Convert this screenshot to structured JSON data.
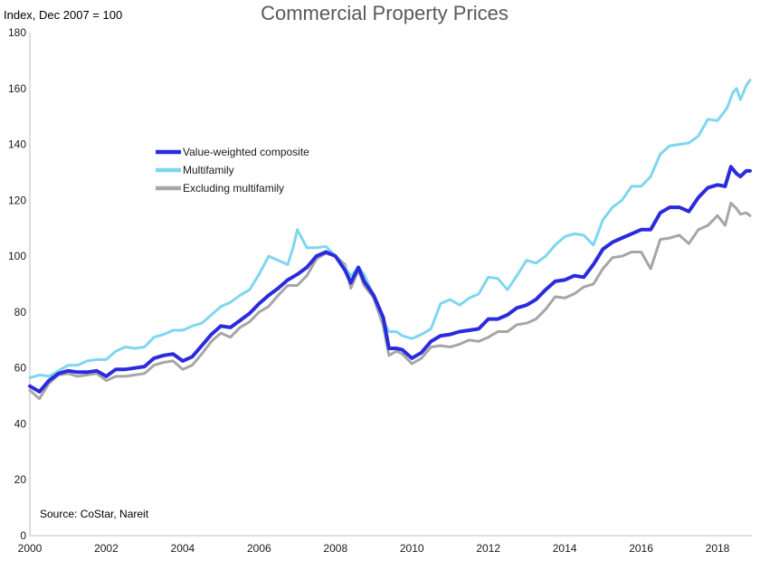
{
  "chart_data": {
    "type": "line",
    "title": "Commercial Property Prices",
    "unit_label": "Index, Dec 2007 = 100",
    "source": "Source: CoStar, Nareit",
    "xlim": [
      2000,
      2018.9
    ],
    "ylim": [
      0,
      180
    ],
    "yticks": [
      "0",
      "20",
      "40",
      "60",
      "80",
      "100",
      "120",
      "140",
      "160",
      "180"
    ],
    "xticks": [
      "2000",
      "2002",
      "2004",
      "2006",
      "2008",
      "2010",
      "2012",
      "2014",
      "2016",
      "2018"
    ],
    "legend_position": "upper-left",
    "series": [
      {
        "name": "Value-weighted composite",
        "color": "#2b2bdd",
        "points": [
          [
            2000.0,
            53.5
          ],
          [
            2000.25,
            51.5
          ],
          [
            2000.5,
            55.5
          ],
          [
            2000.75,
            58.0
          ],
          [
            2001.0,
            59.0
          ],
          [
            2001.25,
            58.5
          ],
          [
            2001.5,
            58.5
          ],
          [
            2001.75,
            59.0
          ],
          [
            2002.0,
            57.0
          ],
          [
            2002.25,
            59.5
          ],
          [
            2002.5,
            59.5
          ],
          [
            2002.75,
            60.0
          ],
          [
            2003.0,
            60.5
          ],
          [
            2003.25,
            63.5
          ],
          [
            2003.5,
            64.5
          ],
          [
            2003.75,
            65.0
          ],
          [
            2004.0,
            62.5
          ],
          [
            2004.25,
            64.0
          ],
          [
            2004.5,
            68.0
          ],
          [
            2004.75,
            72.0
          ],
          [
            2005.0,
            75.0
          ],
          [
            2005.25,
            74.5
          ],
          [
            2005.5,
            77.0
          ],
          [
            2005.75,
            79.5
          ],
          [
            2006.0,
            83.0
          ],
          [
            2006.25,
            86.0
          ],
          [
            2006.5,
            88.5
          ],
          [
            2006.75,
            91.5
          ],
          [
            2007.0,
            93.5
          ],
          [
            2007.25,
            96.0
          ],
          [
            2007.5,
            100.0
          ],
          [
            2007.75,
            101.5
          ],
          [
            2008.0,
            100.0
          ],
          [
            2008.25,
            95.0
          ],
          [
            2008.4,
            90.5
          ],
          [
            2008.6,
            96.0
          ],
          [
            2008.75,
            91.0
          ],
          [
            2009.0,
            86.0
          ],
          [
            2009.25,
            78.0
          ],
          [
            2009.4,
            67.0
          ],
          [
            2009.6,
            67.0
          ],
          [
            2009.75,
            66.5
          ],
          [
            2010.0,
            63.5
          ],
          [
            2010.25,
            65.5
          ],
          [
            2010.5,
            69.5
          ],
          [
            2010.75,
            71.5
          ],
          [
            2011.0,
            72.0
          ],
          [
            2011.25,
            73.0
          ],
          [
            2011.5,
            73.5
          ],
          [
            2011.75,
            74.0
          ],
          [
            2012.0,
            77.5
          ],
          [
            2012.25,
            77.5
          ],
          [
            2012.5,
            79.0
          ],
          [
            2012.75,
            81.5
          ],
          [
            2013.0,
            82.5
          ],
          [
            2013.25,
            84.5
          ],
          [
            2013.5,
            88.0
          ],
          [
            2013.75,
            91.0
          ],
          [
            2014.0,
            91.5
          ],
          [
            2014.25,
            93.0
          ],
          [
            2014.5,
            92.5
          ],
          [
            2014.75,
            97.0
          ],
          [
            2015.0,
            102.5
          ],
          [
            2015.25,
            105.0
          ],
          [
            2015.5,
            106.5
          ],
          [
            2015.75,
            108.0
          ],
          [
            2016.0,
            109.5
          ],
          [
            2016.25,
            109.5
          ],
          [
            2016.5,
            115.5
          ],
          [
            2016.75,
            117.5
          ],
          [
            2017.0,
            117.5
          ],
          [
            2017.25,
            116.0
          ],
          [
            2017.5,
            121.0
          ],
          [
            2017.75,
            124.5
          ],
          [
            2018.0,
            125.5
          ],
          [
            2018.2,
            125.0
          ],
          [
            2018.35,
            132.0
          ],
          [
            2018.5,
            129.5
          ],
          [
            2018.6,
            128.5
          ],
          [
            2018.75,
            130.5
          ],
          [
            2018.85,
            130.5
          ]
        ]
      },
      {
        "name": "Multifamily",
        "color": "#7fd6f0",
        "points": [
          [
            2000.0,
            56.5
          ],
          [
            2000.25,
            57.5
          ],
          [
            2000.5,
            57.0
          ],
          [
            2000.75,
            59.0
          ],
          [
            2001.0,
            61.0
          ],
          [
            2001.25,
            61.0
          ],
          [
            2001.5,
            62.5
          ],
          [
            2001.75,
            63.0
          ],
          [
            2002.0,
            63.0
          ],
          [
            2002.25,
            66.0
          ],
          [
            2002.5,
            67.5
          ],
          [
            2002.75,
            67.0
          ],
          [
            2003.0,
            67.5
          ],
          [
            2003.25,
            71.0
          ],
          [
            2003.5,
            72.0
          ],
          [
            2003.75,
            73.5
          ],
          [
            2004.0,
            73.5
          ],
          [
            2004.25,
            75.0
          ],
          [
            2004.5,
            76.0
          ],
          [
            2004.75,
            79.0
          ],
          [
            2005.0,
            82.0
          ],
          [
            2005.25,
            83.5
          ],
          [
            2005.5,
            86.0
          ],
          [
            2005.75,
            88.0
          ],
          [
            2006.0,
            93.5
          ],
          [
            2006.25,
            100.0
          ],
          [
            2006.5,
            98.5
          ],
          [
            2006.75,
            97.0
          ],
          [
            2006.9,
            103.5
          ],
          [
            2007.0,
            109.5
          ],
          [
            2007.25,
            103.0
          ],
          [
            2007.5,
            103.0
          ],
          [
            2007.75,
            103.5
          ],
          [
            2008.0,
            100.0
          ],
          [
            2008.25,
            96.0
          ],
          [
            2008.4,
            93.0
          ],
          [
            2008.6,
            96.0
          ],
          [
            2008.75,
            93.5
          ],
          [
            2009.0,
            86.0
          ],
          [
            2009.25,
            77.0
          ],
          [
            2009.4,
            73.0
          ],
          [
            2009.6,
            73.0
          ],
          [
            2009.75,
            71.5
          ],
          [
            2010.0,
            70.5
          ],
          [
            2010.25,
            72.0
          ],
          [
            2010.5,
            74.0
          ],
          [
            2010.75,
            83.0
          ],
          [
            2011.0,
            84.5
          ],
          [
            2011.25,
            82.5
          ],
          [
            2011.5,
            85.0
          ],
          [
            2011.75,
            86.5
          ],
          [
            2012.0,
            92.5
          ],
          [
            2012.25,
            92.0
          ],
          [
            2012.5,
            88.0
          ],
          [
            2012.75,
            93.0
          ],
          [
            2013.0,
            98.5
          ],
          [
            2013.25,
            97.5
          ],
          [
            2013.5,
            100.0
          ],
          [
            2013.75,
            104.0
          ],
          [
            2014.0,
            107.0
          ],
          [
            2014.25,
            108.0
          ],
          [
            2014.5,
            107.5
          ],
          [
            2014.75,
            104.0
          ],
          [
            2015.0,
            113.0
          ],
          [
            2015.25,
            117.5
          ],
          [
            2015.5,
            120.0
          ],
          [
            2015.75,
            125.0
          ],
          [
            2016.0,
            125.0
          ],
          [
            2016.25,
            128.5
          ],
          [
            2016.5,
            136.5
          ],
          [
            2016.75,
            139.5
          ],
          [
            2017.0,
            140.0
          ],
          [
            2017.25,
            140.5
          ],
          [
            2017.5,
            143.0
          ],
          [
            2017.75,
            149.0
          ],
          [
            2018.0,
            148.5
          ],
          [
            2018.25,
            153.0
          ],
          [
            2018.4,
            158.5
          ],
          [
            2018.5,
            160.0
          ],
          [
            2018.6,
            156.0
          ],
          [
            2018.75,
            161.0
          ],
          [
            2018.85,
            163.0
          ]
        ]
      },
      {
        "name": "Excluding multifamily",
        "color": "#a6a6a6",
        "points": [
          [
            2000.0,
            52.0
          ],
          [
            2000.25,
            49.0
          ],
          [
            2000.5,
            54.5
          ],
          [
            2000.75,
            57.5
          ],
          [
            2001.0,
            58.0
          ],
          [
            2001.25,
            57.0
          ],
          [
            2001.5,
            57.5
          ],
          [
            2001.75,
            58.0
          ],
          [
            2002.0,
            55.5
          ],
          [
            2002.25,
            57.0
          ],
          [
            2002.5,
            57.0
          ],
          [
            2002.75,
            57.5
          ],
          [
            2003.0,
            58.0
          ],
          [
            2003.25,
            61.0
          ],
          [
            2003.5,
            62.0
          ],
          [
            2003.75,
            62.5
          ],
          [
            2004.0,
            59.5
          ],
          [
            2004.25,
            61.0
          ],
          [
            2004.5,
            65.0
          ],
          [
            2004.75,
            69.5
          ],
          [
            2005.0,
            72.5
          ],
          [
            2005.25,
            71.0
          ],
          [
            2005.5,
            74.5
          ],
          [
            2005.75,
            76.5
          ],
          [
            2006.0,
            80.0
          ],
          [
            2006.25,
            82.0
          ],
          [
            2006.5,
            86.0
          ],
          [
            2006.75,
            89.5
          ],
          [
            2007.0,
            89.5
          ],
          [
            2007.25,
            93.0
          ],
          [
            2007.5,
            99.0
          ],
          [
            2007.75,
            101.0
          ],
          [
            2008.0,
            100.0
          ],
          [
            2008.25,
            97.0
          ],
          [
            2008.4,
            88.5
          ],
          [
            2008.6,
            95.0
          ],
          [
            2008.75,
            89.5
          ],
          [
            2009.0,
            85.0
          ],
          [
            2009.25,
            75.0
          ],
          [
            2009.4,
            64.5
          ],
          [
            2009.6,
            66.0
          ],
          [
            2009.75,
            65.0
          ],
          [
            2010.0,
            61.5
          ],
          [
            2010.25,
            63.5
          ],
          [
            2010.5,
            67.5
          ],
          [
            2010.75,
            68.0
          ],
          [
            2011.0,
            67.5
          ],
          [
            2011.25,
            68.5
          ],
          [
            2011.5,
            70.0
          ],
          [
            2011.75,
            69.5
          ],
          [
            2012.0,
            71.0
          ],
          [
            2012.25,
            73.0
          ],
          [
            2012.5,
            73.0
          ],
          [
            2012.75,
            75.5
          ],
          [
            2013.0,
            76.0
          ],
          [
            2013.25,
            77.5
          ],
          [
            2013.5,
            81.0
          ],
          [
            2013.75,
            85.5
          ],
          [
            2014.0,
            85.0
          ],
          [
            2014.25,
            86.5
          ],
          [
            2014.5,
            89.0
          ],
          [
            2014.75,
            90.0
          ],
          [
            2015.0,
            95.5
          ],
          [
            2015.25,
            99.5
          ],
          [
            2015.5,
            100.0
          ],
          [
            2015.75,
            101.5
          ],
          [
            2016.0,
            101.5
          ],
          [
            2016.25,
            95.5
          ],
          [
            2016.5,
            106.0
          ],
          [
            2016.75,
            106.5
          ],
          [
            2017.0,
            107.5
          ],
          [
            2017.25,
            104.5
          ],
          [
            2017.5,
            109.5
          ],
          [
            2017.75,
            111.0
          ],
          [
            2018.0,
            114.5
          ],
          [
            2018.2,
            111.0
          ],
          [
            2018.35,
            119.0
          ],
          [
            2018.5,
            117.0
          ],
          [
            2018.6,
            115.0
          ],
          [
            2018.75,
            115.5
          ],
          [
            2018.85,
            114.5
          ]
        ]
      }
    ]
  }
}
